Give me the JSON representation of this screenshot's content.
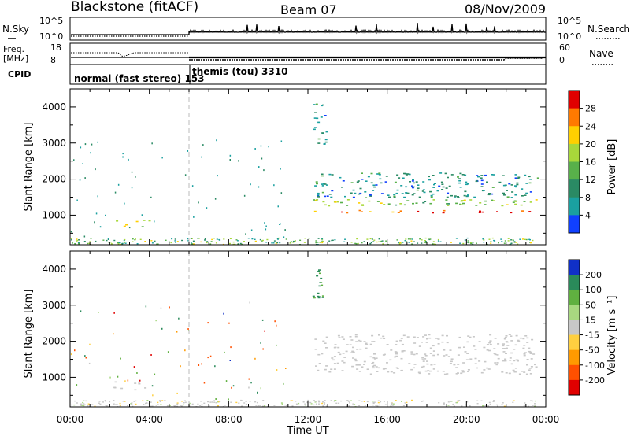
{
  "header": {
    "station": "Blackstone (fitACF)",
    "beam": "Beam 07",
    "date": "08/Nov/2009"
  },
  "strips": {
    "nsky_label": "N.Sky",
    "nsky_ticks": [
      "10^5",
      "10^0"
    ],
    "nsearch_label": "N.Search",
    "nsearch_ticks": [
      "10^5",
      "10^0"
    ],
    "freq_label": "Freq.",
    "freq_unit": "[MHz]",
    "freq_ticks": [
      "18",
      "8"
    ],
    "nave_label": "Nave",
    "nave_ticks": [
      "60",
      "0"
    ],
    "cpid_label": "CPID",
    "cpid_modes": [
      "normal (fast stereo) 153",
      "themis (tou) 3310"
    ]
  },
  "chart_data": [
    {
      "type": "heatmap",
      "panel": "power",
      "ylabel": "Slant Range [km]",
      "xlabel": "",
      "yticks": [
        "1000",
        "2000",
        "3000",
        "4000"
      ],
      "xlim": [
        0,
        24
      ],
      "ylim": [
        180,
        4500
      ],
      "colorbar_label": "Power [dB]",
      "colorbar_ticks": [
        "28",
        "24",
        "20",
        "16",
        "12",
        "8",
        "4"
      ],
      "colorbar_colors": [
        "#e00000",
        "#ff7a00",
        "#ffd000",
        "#a8d83a",
        "#58b04a",
        "#2a8a64",
        "#1aa0a0",
        "#1040ff"
      ],
      "scatter_bands": [
        {
          "t0": 12.1,
          "t1": 23.6,
          "r_from": 1080,
          "r_to": 1150,
          "level": 28
        },
        {
          "t0": 12.1,
          "t1": 23.6,
          "r_from": 1250,
          "r_to": 1450,
          "level": 16
        },
        {
          "t0": 12.3,
          "t1": 23.6,
          "r_from": 1500,
          "r_to": 2200,
          "level": 8
        },
        {
          "t0": 2.1,
          "t1": 2.8,
          "r_from": 700,
          "r_to": 900,
          "level": 20
        },
        {
          "t0": 3.3,
          "t1": 4.0,
          "r_from": 650,
          "r_to": 900,
          "level": 16
        },
        {
          "t0": 12.2,
          "t1": 12.9,
          "r_from": 2900,
          "r_to": 4100,
          "level": 8
        }
      ]
    },
    {
      "type": "heatmap",
      "panel": "velocity",
      "ylabel": "Slant Range [km]",
      "xlabel": "Time UT",
      "yticks": [
        "1000",
        "2000",
        "3000",
        "4000"
      ],
      "xticks": [
        "00:00",
        "04:00",
        "08:00",
        "12:00",
        "16:00",
        "20:00",
        "00:00"
      ],
      "xlim": [
        0,
        24
      ],
      "ylim": [
        180,
        4500
      ],
      "colorbar_label": "Velocity [m s⁻¹]",
      "colorbar_ticks": [
        "200",
        "100",
        "50",
        "15",
        "-15",
        "-50",
        "-100",
        "-200"
      ],
      "colorbar_colors": [
        "#1030c8",
        "#2a8a5a",
        "#60b040",
        "#a8d880",
        "#c8c8c8",
        "#ffd040",
        "#ff9a00",
        "#ff5000",
        "#e00000"
      ],
      "scatter_bands": [
        {
          "t0": 12.3,
          "t1": 23.5,
          "r_from": 1100,
          "r_to": 2200,
          "level": 0
        },
        {
          "t0": 12.2,
          "t1": 12.8,
          "r_from": 2900,
          "r_to": 4000,
          "level": 200
        },
        {
          "t0": 2.0,
          "t1": 2.8,
          "r_from": 700,
          "r_to": 900,
          "level": 0
        },
        {
          "t0": 3.2,
          "t1": 4.0,
          "r_from": 650,
          "r_to": 900,
          "level": 0
        }
      ]
    }
  ]
}
